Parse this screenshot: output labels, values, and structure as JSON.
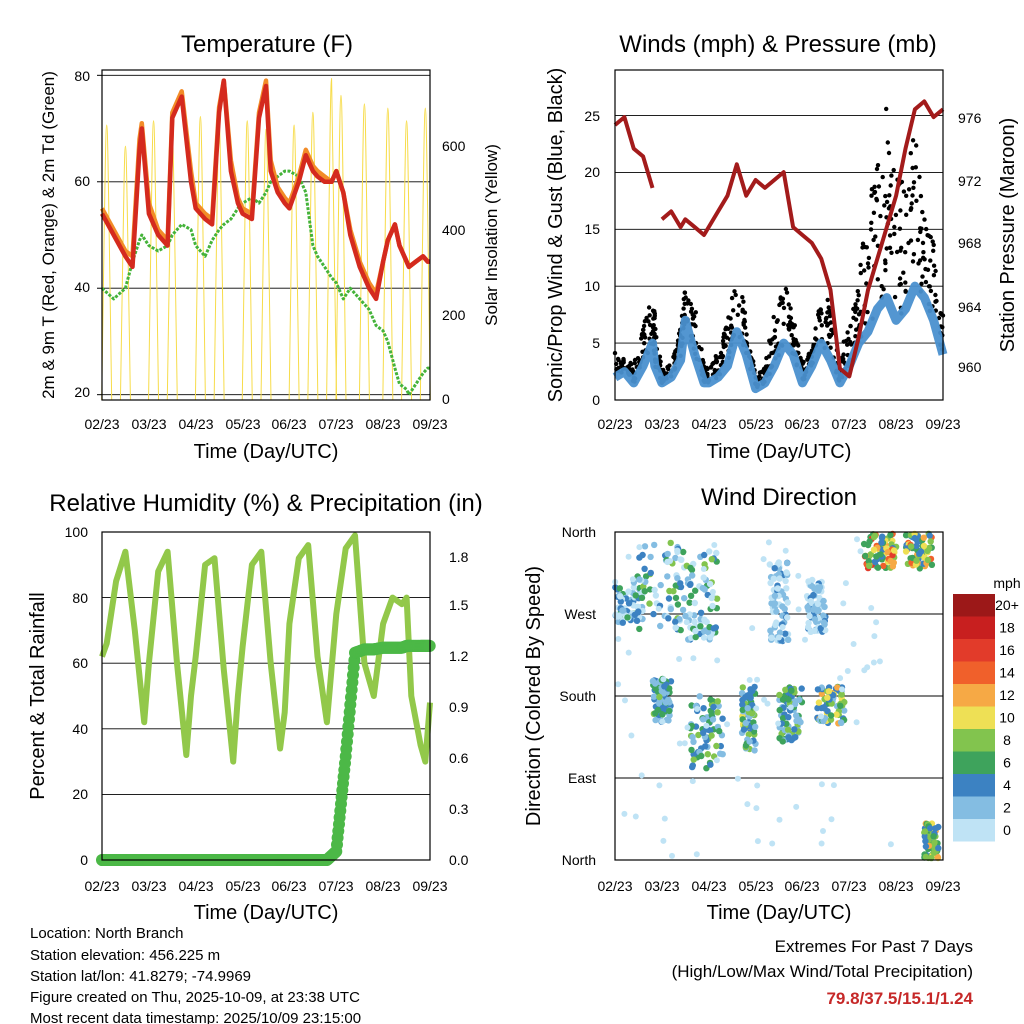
{
  "x_ticks": [
    "02/23",
    "03/23",
    "04/23",
    "05/23",
    "06/23",
    "07/23",
    "08/23",
    "09/23"
  ],
  "x_label": "Time (Day/UTC)",
  "panels": {
    "temperature": {
      "title": "Temperature (F)",
      "ylabel": "2m & 9m T (Red, Orange) & 2m Td (Green)",
      "ylabel_right": "Solar Insolation (Yellow)",
      "yticks": [
        "20",
        "40",
        "60",
        "80"
      ],
      "yticks_right": [
        "0",
        "200",
        "400",
        "600"
      ]
    },
    "winds": {
      "title": "Winds (mph) & Pressure (mb)",
      "ylabel": "Sonic/Prop Wind & Gust (Blue, Black)",
      "ylabel_right": "Station Pressure (Maroon)",
      "yticks": [
        "0",
        "5",
        "10",
        "15",
        "20",
        "25"
      ],
      "yticks_right": [
        "960",
        "964",
        "968",
        "972",
        "976"
      ]
    },
    "humidity": {
      "title": "Relative Humidity (%) & Precipitation (in)",
      "ylabel": "Percent & Total Rainfall",
      "yticks": [
        "0",
        "20",
        "40",
        "60",
        "80",
        "100"
      ],
      "yticks_right": [
        "0.0",
        "0.3",
        "0.6",
        "0.9",
        "1.2",
        "1.5",
        "1.8"
      ]
    },
    "direction": {
      "title": "Wind Direction",
      "ylabel": "Direction (Colored By Speed)",
      "yticks": [
        "North",
        "East",
        "South",
        "West",
        "North"
      ],
      "legend_title": "mph",
      "legend_labels": [
        "20+",
        "18",
        "16",
        "14",
        "12",
        "10",
        "8",
        "6",
        "4",
        "2",
        "0"
      ]
    }
  },
  "info": {
    "location": "Location: North Branch",
    "elevation": "Station elevation: 456.225 m",
    "latlon": "Station lat/lon: 41.8279; -74.9969",
    "created": "Figure created on Thu, 2025-10-09, at 23:38 UTC",
    "recent": "Most recent data timestamp: 2025/10/09 23:15:00"
  },
  "extremes": {
    "line1": "Extremes For Past 7 Days",
    "line2": "(High/Low/Max Wind/Total Precipitation)",
    "values": "79.8/37.5/15.1/1.24"
  },
  "colors": {
    "temp_2m": "#d42a1e",
    "temp_9m": "#f28c28",
    "dewpoint": "#44b33a",
    "solar": "#f7dc4a",
    "gust": "#000000",
    "wind": "#4a90cf",
    "pressure": "#a31b1b",
    "rh": "#92c84a",
    "precip": "#4cb847",
    "speed_scale": [
      "#9c1818",
      "#c81f1f",
      "#e23b2a",
      "#f0602b",
      "#f6a945",
      "#eee055",
      "#82c44e",
      "#3ea35c",
      "#3c82c2",
      "#84bde2",
      "#bfe3f5"
    ]
  },
  "chart_data": [
    {
      "type": "line",
      "title": "Temperature (F)",
      "xlabel": "Time (Day/UTC)",
      "ylabel": "2m & 9m T (Red, Orange) & 2m Td (Green)",
      "y2label": "Solar Insolation (Yellow)",
      "xlim": [
        0,
        7
      ],
      "ylim": [
        19,
        81
      ],
      "y2lim": [
        0,
        780
      ],
      "x": [
        0,
        0.25,
        0.5,
        0.65,
        0.8,
        0.85,
        1.0,
        1.2,
        1.4,
        1.5,
        1.7,
        1.9,
        2.0,
        2.2,
        2.35,
        2.5,
        2.6,
        2.75,
        2.9,
        3.0,
        3.2,
        3.35,
        3.5,
        3.6,
        3.75,
        3.9,
        4.0,
        4.2,
        4.35,
        4.5,
        4.6,
        4.75,
        4.9,
        5.0,
        5.15,
        5.3,
        5.5,
        5.7,
        5.85,
        6.0,
        6.1,
        6.25,
        6.35,
        6.5,
        6.55,
        6.7,
        6.85,
        6.95,
        7.0
      ],
      "series": [
        {
          "name": "2m T",
          "values": [
            54,
            50,
            46,
            44,
            66,
            70,
            54,
            50,
            48,
            72,
            76,
            60,
            55,
            53,
            52,
            73,
            79,
            62,
            56,
            54,
            53,
            72,
            78,
            62,
            58,
            56,
            55,
            60,
            65,
            62,
            61,
            60,
            60,
            62,
            58,
            50,
            44,
            40,
            38,
            45,
            49,
            52,
            48,
            45,
            44,
            45,
            46,
            45,
            45
          ]
        },
        {
          "name": "9m T",
          "values": [
            55,
            51,
            47,
            46,
            68,
            71,
            56,
            51,
            49,
            73,
            77,
            62,
            56,
            54,
            53,
            74,
            79,
            64,
            57,
            55,
            54,
            73,
            79,
            64,
            59,
            57,
            56,
            61,
            66,
            63,
            62,
            61,
            60,
            62,
            58,
            51,
            45,
            41,
            39,
            45,
            49,
            52,
            48,
            45,
            44,
            45,
            46,
            45,
            45
          ]
        },
        {
          "name": "2m Td",
          "values": [
            40,
            38,
            40,
            45,
            49,
            50,
            48,
            47,
            48,
            50,
            52,
            51,
            48,
            46,
            49,
            51,
            52,
            53,
            55,
            56,
            57,
            56,
            58,
            60,
            61,
            62,
            62,
            61,
            58,
            48,
            46,
            44,
            42,
            41,
            38,
            40,
            38,
            36,
            33,
            32,
            30,
            25,
            22,
            21,
            20,
            22,
            24,
            25,
            25
          ]
        }
      ],
      "solar_peaks": [
        {
          "x": 0.1,
          "value": 650
        },
        {
          "x": 0.5,
          "value": 600
        },
        {
          "x": 1.1,
          "value": 660
        },
        {
          "x": 1.5,
          "value": 620
        },
        {
          "x": 2.1,
          "value": 670
        },
        {
          "x": 2.5,
          "value": 650
        },
        {
          "x": 3.1,
          "value": 660
        },
        {
          "x": 3.5,
          "value": 640
        },
        {
          "x": 4.1,
          "value": 650
        },
        {
          "x": 4.5,
          "value": 680
        },
        {
          "x": 4.9,
          "value": 760
        },
        {
          "x": 5.1,
          "value": 720
        },
        {
          "x": 5.6,
          "value": 700
        },
        {
          "x": 6.1,
          "value": 690
        },
        {
          "x": 6.5,
          "value": 660
        },
        {
          "x": 6.9,
          "value": 690
        }
      ]
    },
    {
      "type": "line",
      "title": "Winds (mph) & Pressure (mb)",
      "xlabel": "Time (Day/UTC)",
      "ylabel": "Sonic/Prop Wind & Gust (Blue, Black)",
      "y2label": "Station Pressure (Maroon)",
      "xlim": [
        0,
        7
      ],
      "ylim": [
        0,
        29
      ],
      "y2lim": [
        958,
        979
      ],
      "x": [
        0,
        0.2,
        0.4,
        0.6,
        0.8,
        0.85,
        1.0,
        1.2,
        1.4,
        1.5,
        1.7,
        1.9,
        2.0,
        2.2,
        2.4,
        2.6,
        2.8,
        3.0,
        3.2,
        3.4,
        3.6,
        3.8,
        4.0,
        4.2,
        4.4,
        4.6,
        4.8,
        5.0,
        5.2,
        5.4,
        5.6,
        5.8,
        6.0,
        6.2,
        6.4,
        6.6,
        6.8,
        7.0
      ],
      "series": [
        {
          "name": "Wind",
          "values": [
            2,
            2.5,
            1.5,
            3,
            5,
            3,
            1.5,
            2,
            3.5,
            7,
            4,
            1.5,
            1.5,
            2,
            3,
            6,
            4,
            1,
            1.5,
            3,
            5,
            4,
            1.5,
            3,
            5,
            3.5,
            1.5,
            3,
            5,
            6,
            8,
            9,
            7,
            8,
            10,
            9,
            7,
            4
          ]
        },
        {
          "name": "Gust",
          "values": [
            4,
            3.5,
            3,
            6,
            9,
            7,
            2.5,
            3,
            6,
            10,
            8,
            3,
            2.5,
            4,
            7,
            11,
            7,
            2,
            3,
            7,
            10,
            7,
            3,
            5,
            9,
            8,
            4,
            6,
            10,
            16,
            20,
            24,
            19,
            18,
            22,
            16,
            13,
            7
          ]
        },
        {
          "name": "Pressure",
          "values": [
            975.5,
            976,
            974,
            973.5,
            971.5,
            null,
            969.5,
            970,
            969,
            969.5,
            969,
            968.5,
            969,
            970,
            971,
            973,
            971,
            972,
            971.5,
            972,
            972.5,
            969,
            968.5,
            968,
            967,
            965,
            960,
            959.5,
            962,
            965,
            967,
            969,
            971,
            974,
            976.5,
            977,
            976,
            976.5
          ]
        }
      ]
    },
    {
      "type": "line",
      "title": "Relative Humidity (%) & Precipitation (in)",
      "xlabel": "Time (Day/UTC)",
      "ylabel": "Percent & Total Rainfall",
      "xlim": [
        0,
        7
      ],
      "ylim": [
        0,
        100
      ],
      "y2lim": [
        0,
        1.9
      ],
      "x": [
        0,
        0.1,
        0.3,
        0.5,
        0.7,
        0.9,
        1.0,
        1.2,
        1.4,
        1.6,
        1.8,
        1.9,
        2.0,
        2.2,
        2.4,
        2.6,
        2.8,
        2.9,
        3.0,
        3.2,
        3.4,
        3.6,
        3.8,
        3.9,
        4.0,
        4.2,
        4.4,
        4.6,
        4.8,
        5.0,
        5.2,
        5.4,
        5.6,
        5.8,
        6.0,
        6.2,
        6.4,
        6.5,
        6.6,
        6.8,
        6.9,
        7.0
      ],
      "series": [
        {
          "name": "RH",
          "values": [
            62,
            66,
            85,
            94,
            70,
            42,
            60,
            88,
            94,
            60,
            32,
            50,
            62,
            90,
            92,
            58,
            30,
            50,
            65,
            90,
            94,
            60,
            34,
            45,
            72,
            92,
            96,
            62,
            42,
            75,
            95,
            99,
            60,
            50,
            72,
            80,
            78,
            80,
            50,
            35,
            30,
            48
          ]
        },
        {
          "name": "Precip",
          "values": [
            0,
            0,
            0,
            0,
            0,
            0,
            0,
            0,
            0,
            0,
            0,
            0,
            0,
            0,
            0,
            0,
            0,
            0,
            0,
            0,
            0,
            0,
            0,
            0,
            0,
            0,
            0,
            0,
            0,
            0.05,
            0.6,
            1.2,
            1.22,
            1.22,
            1.23,
            1.23,
            1.23,
            1.24,
            1.24,
            1.24,
            1.24,
            1.24
          ]
        }
      ]
    },
    {
      "type": "scatter",
      "title": "Wind Direction",
      "xlabel": "Time (Day/UTC)",
      "ylabel": "Direction (Colored By Speed)",
      "xlim": [
        0,
        7
      ],
      "yticks": [
        "North",
        "East",
        "South",
        "West",
        "North"
      ],
      "ylim_degrees": [
        0,
        360
      ],
      "color_scale_mph": [
        0,
        2,
        4,
        6,
        8,
        10,
        12,
        14,
        16,
        18,
        20
      ],
      "clusters": [
        {
          "x": [
            0,
            0.6
          ],
          "direction": [
            260,
            300
          ],
          "speed": [
            0,
            6
          ]
        },
        {
          "x": [
            0.4,
            1.5
          ],
          "direction": [
            250,
            350
          ],
          "speed": [
            0,
            8
          ]
        },
        {
          "x": [
            0.8,
            1.2
          ],
          "direction": [
            150,
            200
          ],
          "speed": [
            2,
            8
          ]
        },
        {
          "x": [
            1.5,
            2.2
          ],
          "direction": [
            240,
            340
          ],
          "speed": [
            0,
            8
          ]
        },
        {
          "x": [
            1.6,
            2.3
          ],
          "direction": [
            100,
            180
          ],
          "speed": [
            2,
            8
          ]
        },
        {
          "x": [
            2.7,
            3.0
          ],
          "direction": [
            120,
            190
          ],
          "speed": [
            2,
            10
          ]
        },
        {
          "x": [
            3.3,
            3.7
          ],
          "direction": [
            240,
            330
          ],
          "speed": [
            0,
            4
          ]
        },
        {
          "x": [
            3.5,
            4.0
          ],
          "direction": [
            130,
            190
          ],
          "speed": [
            2,
            8
          ]
        },
        {
          "x": [
            4.1,
            4.5
          ],
          "direction": [
            250,
            310
          ],
          "speed": [
            0,
            4
          ]
        },
        {
          "x": [
            4.3,
            4.9
          ],
          "direction": [
            150,
            190
          ],
          "speed": [
            2,
            12
          ]
        },
        {
          "x": [
            5.3,
            6.0
          ],
          "direction": [
            320,
            358
          ],
          "speed": [
            4,
            16
          ]
        },
        {
          "x": [
            6.2,
            6.8
          ],
          "direction": [
            320,
            358
          ],
          "speed": [
            4,
            14
          ]
        },
        {
          "x": [
            6.6,
            6.9
          ],
          "direction": [
            2,
            40
          ],
          "speed": [
            4,
            12
          ]
        }
      ]
    }
  ]
}
